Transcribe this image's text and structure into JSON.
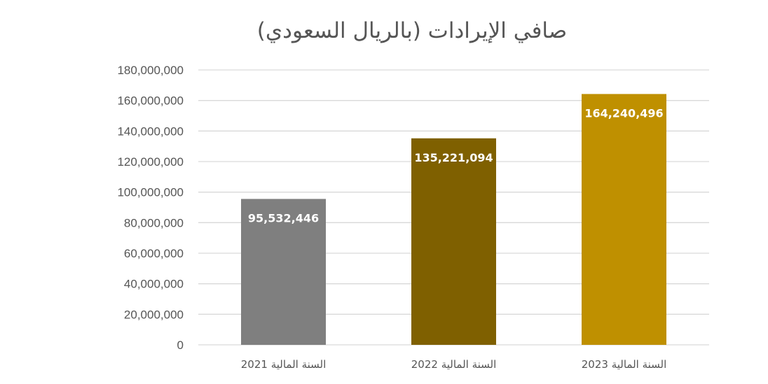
{
  "chart_data": {
    "type": "bar",
    "title": "صافي الإيرادات (بالريال السعودي)",
    "categories": [
      "السنة المالية 2021",
      "السنة المالية 2022",
      "السنة المالية 2023"
    ],
    "values": [
      95532446,
      135221094,
      164240496
    ],
    "data_labels": [
      "95,532,446",
      "135,221,094",
      "164,240,496"
    ],
    "bar_colors": [
      "#7f7f7f",
      "#7f6000",
      "#bf9000"
    ],
    "ylim": [
      0,
      180000000
    ],
    "yticks": [
      0,
      20000000,
      40000000,
      60000000,
      80000000,
      100000000,
      120000000,
      140000000,
      160000000,
      180000000
    ],
    "ytick_labels": [
      "0",
      "20,000,000",
      "40,000,000",
      "60,000,000",
      "80,000,000",
      "100,000,000",
      "120,000,000",
      "140,000,000",
      "160,000,000",
      "180,000,000"
    ],
    "grid": true,
    "legend": "none",
    "gridline_color": "#d9d9d9",
    "label_color": "#555555"
  }
}
